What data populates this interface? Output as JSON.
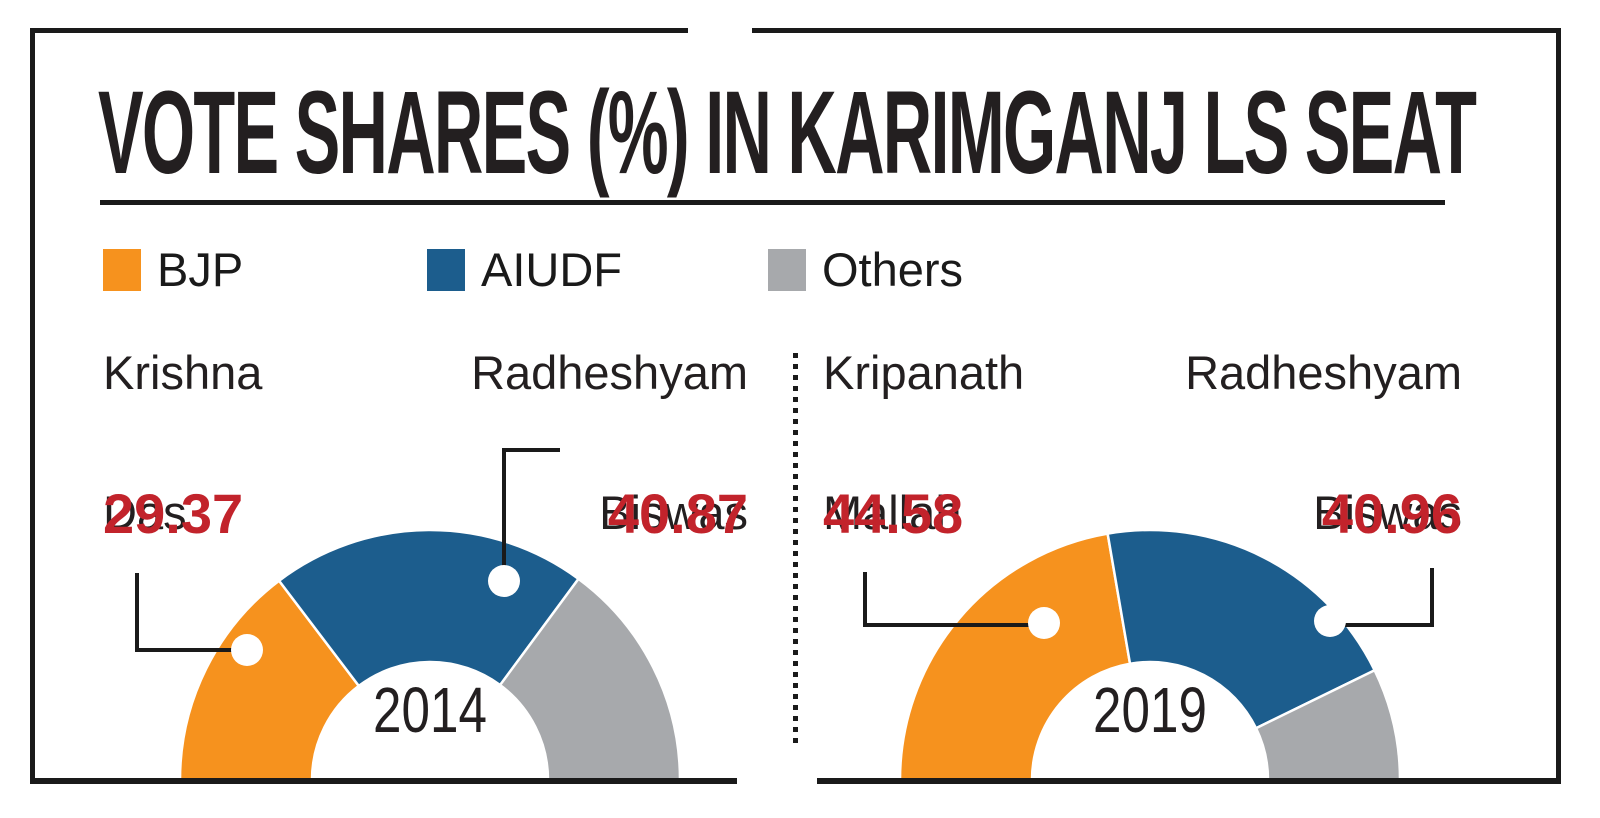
{
  "title": "VOTE SHARES (%) IN KARIMGANJ LS SEAT",
  "legend": [
    {
      "label": "BJP",
      "color": "#F6921E"
    },
    {
      "label": "AIUDF",
      "color": "#1C5D8D"
    },
    {
      "label": "Others",
      "color": "#A7A9AC"
    }
  ],
  "colors": {
    "bjp_orange": "#F6921E",
    "aiudf_blue": "#1C5D8D",
    "others_gray": "#A7A9AC",
    "value_red": "#C2232B",
    "ink_black": "#231F20"
  },
  "panels": [
    {
      "year": "2014",
      "left_candidate": {
        "line1": "Krishna",
        "line2": "Das",
        "value": "29.37"
      },
      "right_candidate": {
        "line1": "Radheshyam",
        "line2": "Biswas",
        "value": "40.87"
      }
    },
    {
      "year": "2019",
      "left_candidate": {
        "line1": "Kripanath",
        "line2": "Mallah",
        "value": "44.58"
      },
      "right_candidate": {
        "line1": "Radheshyam",
        "line2": "Biswas",
        "value": "40.96"
      }
    }
  ],
  "chart_data": [
    {
      "type": "pie",
      "variant": "half-donut",
      "title": "2014",
      "categories": [
        "BJP",
        "AIUDF",
        "Others"
      ],
      "values": [
        29.37,
        40.87,
        29.76
      ],
      "candidates": [
        "Krishna Das",
        "Radheshyam Biswas",
        ""
      ],
      "unit": "% vote share",
      "colors": [
        "#F6921E",
        "#1C5D8D",
        "#A7A9AC"
      ],
      "labeled_values": [
        "29.37",
        "40.87"
      ],
      "legend_position": "top"
    },
    {
      "type": "pie",
      "variant": "half-donut",
      "title": "2019",
      "categories": [
        "BJP",
        "AIUDF",
        "Others"
      ],
      "values": [
        44.58,
        40.96,
        14.46
      ],
      "candidates": [
        "Kripanath Mallah",
        "Radheshyam Biswas",
        ""
      ],
      "unit": "% vote share",
      "colors": [
        "#F6921E",
        "#1C5D8D",
        "#A7A9AC"
      ],
      "labeled_values": [
        "44.58",
        "40.96"
      ],
      "legend_position": "top"
    }
  ]
}
